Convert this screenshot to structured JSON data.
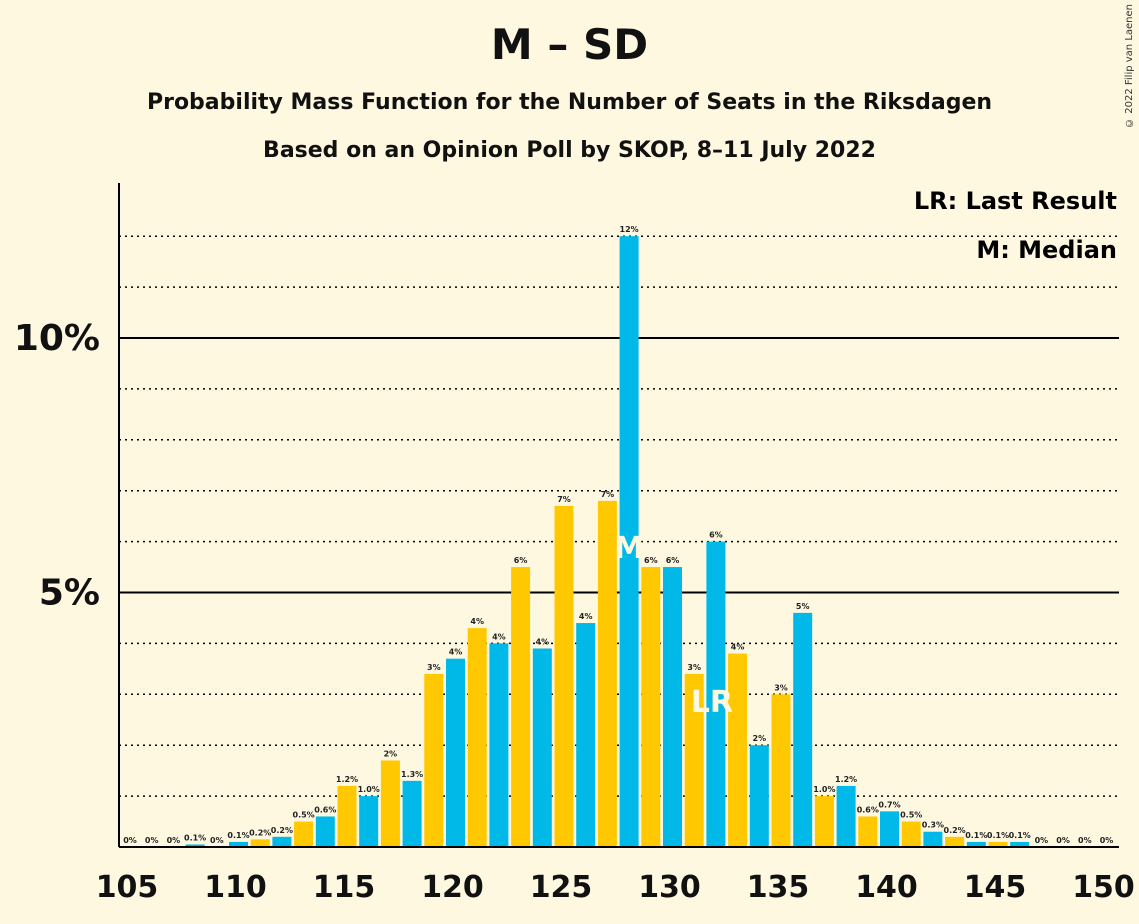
{
  "title": "M – SD",
  "subtitle1": "Probability Mass Function for the Number of Seats in the Riksdagen",
  "subtitle2": "Based on an Opinion Poll by SKOP, 8–11 July 2022",
  "copyright": "© 2022 Filip van Laenen",
  "legend": {
    "last_result": "LR: Last Result",
    "median": "M: Median"
  },
  "markers": {
    "median_label": "M",
    "last_result_label": "LR"
  },
  "colors": {
    "blue": "#00B9E8",
    "yellow": "#FFC800",
    "background": "#FFF8E1"
  },
  "chart_data": {
    "type": "bar",
    "x": [
      105,
      106,
      107,
      108,
      109,
      110,
      111,
      112,
      113,
      114,
      115,
      116,
      117,
      118,
      119,
      120,
      121,
      122,
      123,
      124,
      125,
      126,
      127,
      128,
      129,
      130,
      131,
      132,
      133,
      134,
      135,
      136,
      137,
      138,
      139,
      140,
      141,
      142,
      143,
      144,
      145,
      146,
      147,
      148,
      149,
      150
    ],
    "values": [
      0,
      0,
      0,
      0.05,
      0,
      0.1,
      0.15,
      0.2,
      0.5,
      0.6,
      1.2,
      1.0,
      1.7,
      1.3,
      3.4,
      3.7,
      4.3,
      4.0,
      5.5,
      3.9,
      6.7,
      4.4,
      6.8,
      12.0,
      5.5,
      5.5,
      3.4,
      6.0,
      3.8,
      2.0,
      3.0,
      4.6,
      1.0,
      1.2,
      0.6,
      0.7,
      0.5,
      0.3,
      0.2,
      0.1,
      0.1,
      0.1,
      0,
      0,
      0,
      0
    ],
    "labels": [
      "0%",
      "0%",
      "0%",
      "0.1%",
      "0%",
      "0.1%",
      "0.2%",
      "0.2%",
      "0.5%",
      "0.6%",
      "1.2%",
      "1.0%",
      "2%",
      "1.3%",
      "3%",
      "4%",
      "4%",
      "4%",
      "6%",
      "4%",
      "7%",
      "4%",
      "7%",
      "12%",
      "6%",
      "6%",
      "3%",
      "6%",
      "4%",
      "2%",
      "3%",
      "5%",
      "1.0%",
      "1.2%",
      "0.6%",
      "0.7%",
      "0.5%",
      "0.3%",
      "0.2%",
      "0.1%",
      "0.1%",
      "0.1%",
      "0%",
      "0%",
      "0%",
      "0%"
    ],
    "median": 128,
    "last_result": 132,
    "xlim": [
      105,
      150
    ],
    "ylim": [
      0,
      13
    ],
    "x_ticks": [
      105,
      110,
      115,
      120,
      125,
      130,
      135,
      140,
      145,
      150
    ],
    "y_major_ticks": [
      5,
      10
    ],
    "y_tick_labels": [
      "5%",
      "10%"
    ],
    "grid": "dotted minor every 1%, solid major at 5% and 10%"
  }
}
